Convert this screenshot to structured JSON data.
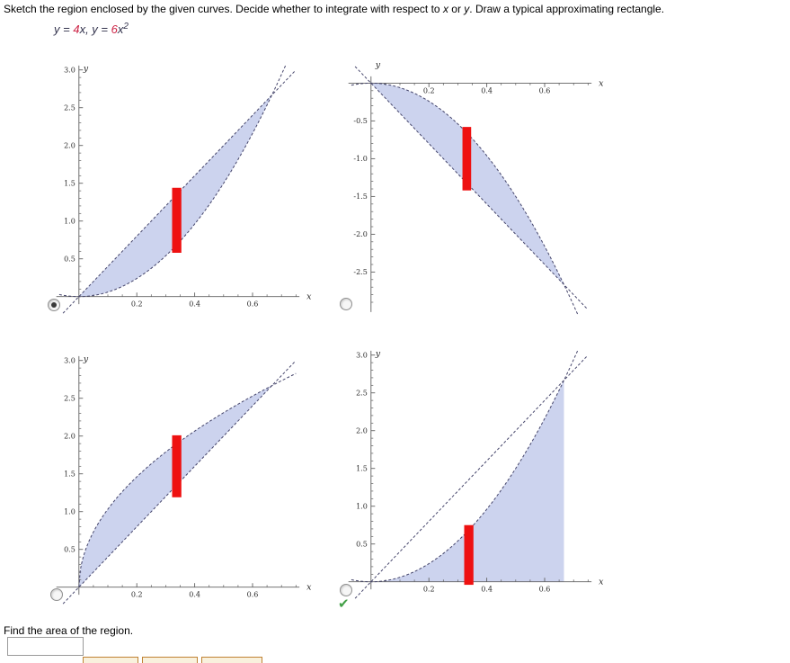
{
  "problem": {
    "title_parts": [
      {
        "text": "Sketch the region enclosed by the given curves. Decide whether to integrate with respect to ",
        "italic": false
      },
      {
        "text": "x",
        "italic": true
      },
      {
        "text": " or ",
        "italic": false
      },
      {
        "text": "y",
        "italic": true
      },
      {
        "text": ". Draw a typical approximating rectangle.",
        "italic": false
      }
    ],
    "equation_parts": [
      {
        "text": "y",
        "style": "var"
      },
      {
        "text": " = ",
        "style": "var"
      },
      {
        "text": "4",
        "style": "num"
      },
      {
        "text": "x",
        "style": "var"
      },
      {
        "text": ",  ",
        "style": "var"
      },
      {
        "text": "y",
        "style": "var"
      },
      {
        "text": " = ",
        "style": "var"
      },
      {
        "text": "6",
        "style": "num"
      },
      {
        "text": "x",
        "style": "var"
      },
      {
        "text": "2",
        "style": "sup"
      }
    ]
  },
  "choices": {
    "options": [
      {
        "key": "A",
        "selected": true,
        "has_check": false
      },
      {
        "key": "B",
        "selected": false,
        "has_check": false
      },
      {
        "key": "C",
        "selected": false,
        "has_check": false
      },
      {
        "key": "D",
        "selected": false,
        "has_check": true
      }
    ],
    "check_glyph": "✔"
  },
  "followup": {
    "label": "Find the area of the region.",
    "answer_value": ""
  },
  "palette": {
    "buttons": [
      {
        "label": ""
      },
      {
        "label": ""
      },
      {
        "label": ""
      }
    ]
  },
  "colors": {
    "region_fill": "#ccd3ee",
    "curve": "#45456b",
    "rectangle": "#ee1111",
    "axis": "#606060",
    "equation_number": "#cc2244",
    "equation_variable": "#33334d",
    "check": "#43a047"
  },
  "chart_data": [
    {
      "key": "A",
      "type": "area",
      "title": "",
      "description": "Region between line y=4x (upper) and parabola y=6x^2 (lower) for x in [0, 2/3]; vertical red approximating rectangle near x=0.34",
      "xlabel": "x",
      "ylabel": "y",
      "axis_side": "bottom",
      "x_range": [
        -0.105,
        0.785
      ],
      "y_range": [
        -0.375,
        3.08
      ],
      "x_axis_span": [
        -0.078,
        0.762
      ],
      "y_axis_span": [
        -0.1,
        3.058
      ],
      "x_ticks": {
        "values": [
          0.2,
          0.4,
          0.6
        ],
        "labels": [
          "0.2",
          "0.4",
          "0.6"
        ]
      },
      "y_ticks": {
        "values": [
          0.5,
          1.0,
          1.5,
          2.0,
          2.5,
          3.0
        ],
        "labels": [
          "0.5",
          "1.0",
          "1.5",
          "2.0",
          "2.5",
          "3.0"
        ]
      },
      "x_minor": {
        "start": 0.05,
        "end": 0.75,
        "step": 0.05
      },
      "y_minor": {
        "start": 0.1,
        "end": 3.0,
        "step": 0.1
      },
      "curves": [
        {
          "name": "y = 4x",
          "fn": "line",
          "a": 4,
          "domain": [
            -0.055,
            0.745
          ]
        },
        {
          "name": "y = 6x^2",
          "fn": "parabola",
          "a": 6,
          "domain": [
            -0.068,
            0.715
          ]
        }
      ],
      "region": {
        "upper": {
          "fn": "line",
          "a": 4
        },
        "lower": {
          "fn": "parabola",
          "a": 6
        },
        "x_from": 0,
        "x_to": 0.6667
      },
      "rectangle": {
        "x": 0.322,
        "width": 0.032,
        "y_from": 0.58,
        "y_to": 1.44
      },
      "intersections": [
        [
          0,
          0
        ],
        [
          0.6667,
          2.6667
        ]
      ]
    },
    {
      "key": "B",
      "type": "area",
      "title": "",
      "description": "Mirrored region between parabola y=-6x^2 (upper) and line y=-4x (lower) for x in [0, 2/3]; rectangle near x=0.33",
      "xlabel": "x",
      "ylabel": "y",
      "axis_side": "top",
      "x_range": [
        -0.105,
        0.785
      ],
      "y_range": [
        -3.127,
        0.35
      ],
      "x_axis_span": [
        -0.078,
        0.762
      ],
      "y_axis_span": [
        -3.03,
        0.09
      ],
      "x_ticks": {
        "values": [
          0.2,
          0.4,
          0.6
        ],
        "labels": [
          "0.2",
          "0.4",
          "0.6"
        ]
      },
      "y_ticks": {
        "values": [
          -0.5,
          -1.0,
          -1.5,
          -2.0,
          -2.5
        ],
        "labels": [
          "-0.5",
          "-1.0",
          "-1.5",
          "-2.0",
          "-2.5"
        ]
      },
      "x_minor": {
        "start": 0.05,
        "end": 0.75,
        "step": 0.05
      },
      "y_minor": {
        "start": -3.0,
        "end": -0.1,
        "step": 0.1
      },
      "curves": [
        {
          "name": "y = -4x",
          "fn": "line",
          "a": -4,
          "domain": [
            -0.055,
            0.745
          ]
        },
        {
          "name": "y = -6x^2",
          "fn": "parabola",
          "a": -6,
          "domain": [
            -0.068,
            0.715
          ]
        }
      ],
      "region": {
        "upper": {
          "fn": "parabola",
          "a": -6
        },
        "lower": {
          "fn": "line",
          "a": -4
        },
        "x_from": 0,
        "x_to": 0.6667
      },
      "rectangle": {
        "x": 0.316,
        "width": 0.03,
        "y_from": -1.42,
        "y_to": -0.58
      },
      "intersections": [
        [
          0,
          0
        ],
        [
          0.6667,
          -2.6667
        ]
      ]
    },
    {
      "key": "C",
      "type": "area",
      "title": "",
      "description": "Region between concave-down square-root curve (upper) and line y=4x (lower) for x in [0, 2/3]; rectangle near x=0.34",
      "xlabel": "x",
      "ylabel": "y",
      "axis_side": "bottom",
      "x_range": [
        -0.105,
        0.785
      ],
      "y_range": [
        -0.375,
        3.08
      ],
      "x_axis_span": [
        -0.078,
        0.762
      ],
      "y_axis_span": [
        -0.1,
        3.058
      ],
      "x_ticks": {
        "values": [
          0.2,
          0.4,
          0.6
        ],
        "labels": [
          "0.2",
          "0.4",
          "0.6"
        ]
      },
      "y_ticks": {
        "values": [
          0.5,
          1.0,
          1.5,
          2.0,
          2.5,
          3.0
        ],
        "labels": [
          "0.5",
          "1.0",
          "1.5",
          "2.0",
          "2.5",
          "3.0"
        ]
      },
      "x_minor": {
        "start": 0.05,
        "end": 0.75,
        "step": 0.05
      },
      "y_minor": {
        "start": 0.1,
        "end": 3.0,
        "step": 0.1
      },
      "curves": [
        {
          "name": "y = sqrt(32x/3)",
          "fn": "sqrt",
          "a": 10.6667,
          "domain": [
            0,
            0.75
          ]
        },
        {
          "name": "y = 4x",
          "fn": "line",
          "a": 4,
          "domain": [
            -0.055,
            0.745
          ]
        }
      ],
      "region": {
        "upper": {
          "fn": "sqrt",
          "a": 10.6667
        },
        "lower": {
          "fn": "line",
          "a": 4
        },
        "x_from": 0,
        "x_to": 0.6667
      },
      "rectangle": {
        "x": 0.322,
        "width": 0.032,
        "y_from": 1.19,
        "y_to": 2.01
      },
      "intersections": [
        [
          0,
          0
        ],
        [
          0.6667,
          2.6667
        ]
      ]
    },
    {
      "key": "D",
      "type": "area",
      "title": "",
      "description": "Region under parabola y=6x^2 down to the x-axis for x in [0, 2/3] with vertical right edge; dashed line y=4x shown; rectangle near x=0.34 from axis to parabola",
      "xlabel": "x",
      "ylabel": "y",
      "axis_side": "bottom",
      "x_range": [
        -0.105,
        0.785
      ],
      "y_range": [
        -0.375,
        3.08
      ],
      "x_axis_span": [
        -0.078,
        0.762
      ],
      "y_axis_span": [
        -0.1,
        3.058
      ],
      "x_ticks": {
        "values": [
          0.2,
          0.4,
          0.6
        ],
        "labels": [
          "0.2",
          "0.4",
          "0.6"
        ]
      },
      "y_ticks": {
        "values": [
          0.5,
          1.0,
          1.5,
          2.0,
          2.5,
          3.0
        ],
        "labels": [
          "0.5",
          "1.0",
          "1.5",
          "2.0",
          "2.5",
          "3.0"
        ]
      },
      "x_minor": {
        "start": 0.05,
        "end": 0.75,
        "step": 0.05
      },
      "y_minor": {
        "start": 0.1,
        "end": 3.0,
        "step": 0.1
      },
      "curves": [
        {
          "name": "y = 4x",
          "fn": "line",
          "a": 4,
          "domain": [
            -0.055,
            0.745
          ]
        },
        {
          "name": "y = 6x^2",
          "fn": "parabola",
          "a": 6,
          "domain": [
            -0.068,
            0.715
          ]
        }
      ],
      "region": {
        "upper": {
          "fn": "parabola",
          "a": 6
        },
        "lower": {
          "fn": "zero",
          "a": 0
        },
        "x_from": 0,
        "x_to": 0.6667
      },
      "rectangle": {
        "x": 0.322,
        "width": 0.032,
        "y_from": -0.04,
        "y_to": 0.75
      },
      "intersections": [
        [
          0,
          0
        ],
        [
          0.6667,
          2.6667
        ]
      ]
    }
  ]
}
